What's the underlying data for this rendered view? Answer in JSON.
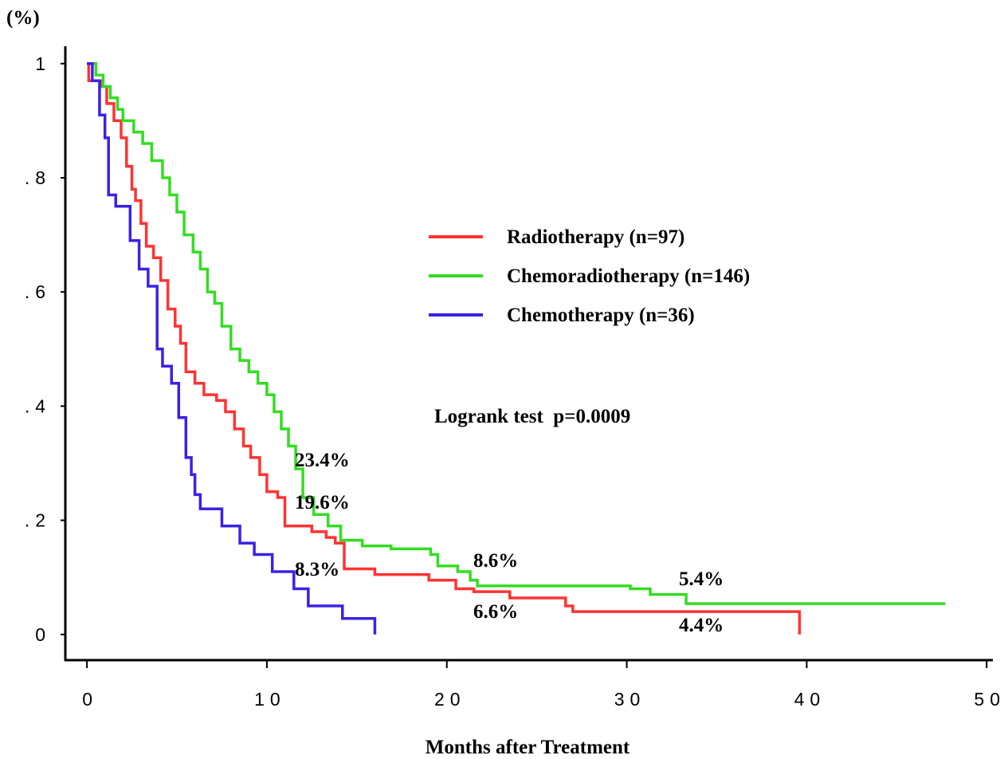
{
  "chart_data": {
    "type": "step",
    "y_label": "(%)",
    "x_label": "Months after Treatment",
    "xlim": [
      -1.2,
      50.3
    ],
    "ylim": [
      -0.045,
      1.05
    ],
    "xticks": [
      0,
      10,
      20,
      30,
      40,
      50
    ],
    "yticks": [
      {
        "value": 0,
        "label": "0"
      },
      {
        "value": 0.2,
        "label": ".2"
      },
      {
        "value": 0.4,
        "label": ".4"
      },
      {
        "value": 0.6,
        "label": ".6"
      },
      {
        "value": 0.8,
        "label": ".8"
      },
      {
        "value": 1,
        "label": "1"
      }
    ],
    "series": [
      {
        "name": "Radiotherapy (n=97)",
        "color": "#ff3333",
        "x": [
          0,
          0.1,
          0.8,
          1.1,
          1.5,
          1.9,
          2.2,
          2.5,
          2.7,
          3.0,
          3.3,
          3.7,
          4.1,
          4.5,
          4.9,
          5.2,
          5.5,
          6.0,
          6.5,
          7.2,
          7.7,
          8.2,
          8.7,
          9.1,
          9.6,
          10.0,
          10.6,
          11.0,
          12.5,
          13.3,
          13.8,
          14.3,
          16.0,
          19.0,
          20.5,
          21.5,
          23.5,
          26.6,
          27.0,
          39.6,
          39.6
        ],
        "values": [
          1,
          0.97,
          0.96,
          0.93,
          0.9,
          0.87,
          0.82,
          0.78,
          0.76,
          0.72,
          0.68,
          0.66,
          0.62,
          0.57,
          0.54,
          0.51,
          0.46,
          0.44,
          0.42,
          0.41,
          0.39,
          0.36,
          0.33,
          0.31,
          0.28,
          0.25,
          0.24,
          0.19,
          0.18,
          0.17,
          0.16,
          0.115,
          0.105,
          0.095,
          0.08,
          0.075,
          0.064,
          0.05,
          0.04,
          0.04,
          0
        ]
      },
      {
        "name": "Chemoradiotherapy (n=146)",
        "color": "#33dd22",
        "x": [
          0,
          0.5,
          0.9,
          1.3,
          1.7,
          2.0,
          2.6,
          3.1,
          3.6,
          4.2,
          4.6,
          5.0,
          5.4,
          5.9,
          6.3,
          6.7,
          7.1,
          7.5,
          8.0,
          8.5,
          9.0,
          9.5,
          10.0,
          10.4,
          10.8,
          11.2,
          11.6,
          12.0,
          12.6,
          13.4,
          14.1,
          15.3,
          16.9,
          19.1,
          19.5,
          20.6,
          21.3,
          21.7,
          30.2,
          31.3,
          33.3,
          47.7
        ],
        "values": [
          1,
          0.98,
          0.96,
          0.94,
          0.92,
          0.9,
          0.88,
          0.86,
          0.83,
          0.8,
          0.77,
          0.74,
          0.7,
          0.67,
          0.64,
          0.6,
          0.58,
          0.54,
          0.5,
          0.48,
          0.46,
          0.44,
          0.42,
          0.39,
          0.36,
          0.33,
          0.29,
          0.24,
          0.21,
          0.19,
          0.165,
          0.155,
          0.15,
          0.14,
          0.12,
          0.11,
          0.095,
          0.085,
          0.08,
          0.07,
          0.054,
          0.054
        ]
      },
      {
        "name": "Chemotherapy (n=36)",
        "color": "#3a22e6",
        "x": [
          0,
          0.3,
          0.7,
          1.0,
          1.2,
          1.6,
          2.4,
          2.9,
          3.4,
          3.9,
          4.2,
          4.7,
          5.1,
          5.5,
          5.8,
          6.0,
          6.3,
          7.5,
          8.5,
          9.3,
          10.3,
          11.5,
          12.3,
          14.2,
          16.0
        ],
        "values": [
          1,
          0.97,
          0.91,
          0.87,
          0.77,
          0.75,
          0.69,
          0.64,
          0.61,
          0.5,
          0.47,
          0.44,
          0.38,
          0.31,
          0.28,
          0.245,
          0.22,
          0.19,
          0.16,
          0.14,
          0.11,
          0.08,
          0.05,
          0.028,
          0
        ]
      }
    ],
    "annotations": [
      "23.4%",
      "19.6%",
      "8.3%",
      "8.6%",
      "6.6%",
      "5.4%",
      "4.4%",
      "Logrank test  p=0.0009"
    ]
  }
}
